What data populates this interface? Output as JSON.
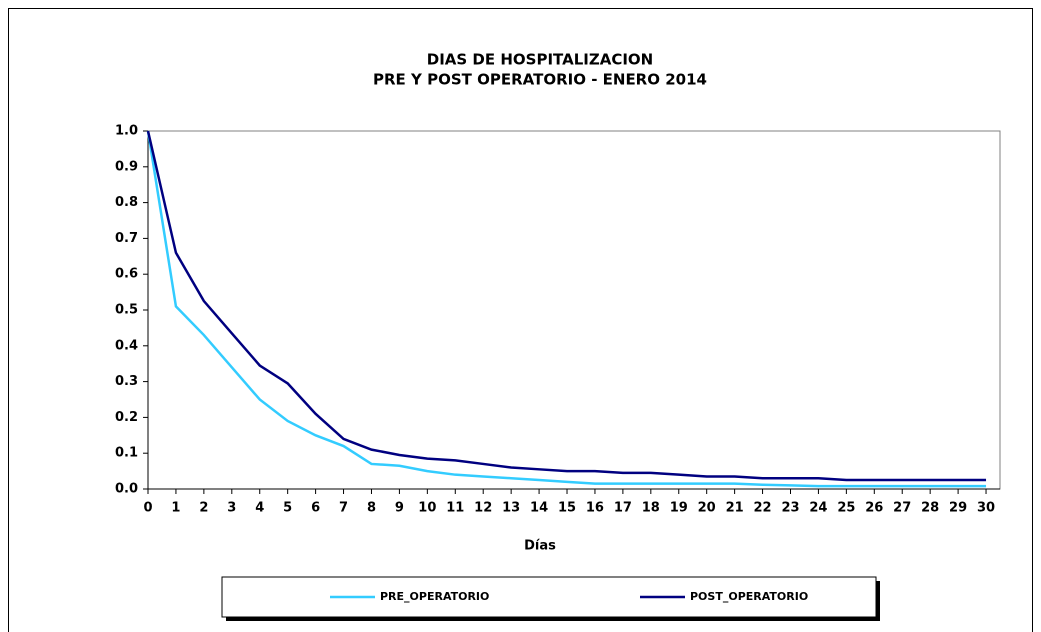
{
  "chart_data": {
    "type": "line",
    "title": "DIAS DE HOSPITALIZACION",
    "subtitle": "PRE Y POST OPERATORIO  -  ENERO 2014",
    "x_label": "Días",
    "x": [
      0,
      1,
      2,
      3,
      4,
      5,
      6,
      7,
      8,
      9,
      10,
      11,
      12,
      13,
      14,
      15,
      16,
      17,
      18,
      19,
      20,
      21,
      22,
      23,
      24,
      25,
      26,
      27,
      28,
      29,
      30
    ],
    "xlim": [
      0,
      30.5
    ],
    "xticks": [
      0,
      1,
      2,
      3,
      4,
      5,
      6,
      7,
      8,
      9,
      10,
      11,
      12,
      13,
      14,
      15,
      16,
      17,
      18,
      19,
      20,
      21,
      22,
      23,
      24,
      25,
      26,
      27,
      28,
      29,
      30
    ],
    "ylim": [
      0,
      1
    ],
    "yticks": [
      {
        "value": 0,
        "label": "0.0"
      },
      0.1,
      0.2,
      0.3,
      0.4,
      0.5,
      0.6,
      0.7,
      0.8,
      0.9,
      {
        "value": 1,
        "label": "1.0"
      }
    ],
    "grid": false,
    "legend": "bottom",
    "series": [
      {
        "name": "PRE_OPERATORIO",
        "color": "#33ccff",
        "values": [
          1.0,
          0.51,
          0.43,
          0.34,
          0.25,
          0.19,
          0.15,
          0.12,
          0.07,
          0.065,
          0.05,
          0.04,
          0.035,
          0.03,
          0.025,
          0.02,
          0.015,
          0.015,
          0.015,
          0.015,
          0.015,
          0.015,
          0.012,
          0.01,
          0.008,
          0.008,
          0.008,
          0.008,
          0.008,
          0.008,
          0.008
        ]
      },
      {
        "name": "POST_OPERATORIO",
        "color": "#000080",
        "values": [
          1.0,
          0.66,
          0.525,
          0.435,
          0.345,
          0.295,
          0.21,
          0.14,
          0.11,
          0.095,
          0.085,
          0.08,
          0.07,
          0.06,
          0.055,
          0.05,
          0.05,
          0.045,
          0.045,
          0.04,
          0.035,
          0.035,
          0.03,
          0.03,
          0.03,
          0.025,
          0.025,
          0.025,
          0.025,
          0.025,
          0.025
        ]
      }
    ]
  }
}
